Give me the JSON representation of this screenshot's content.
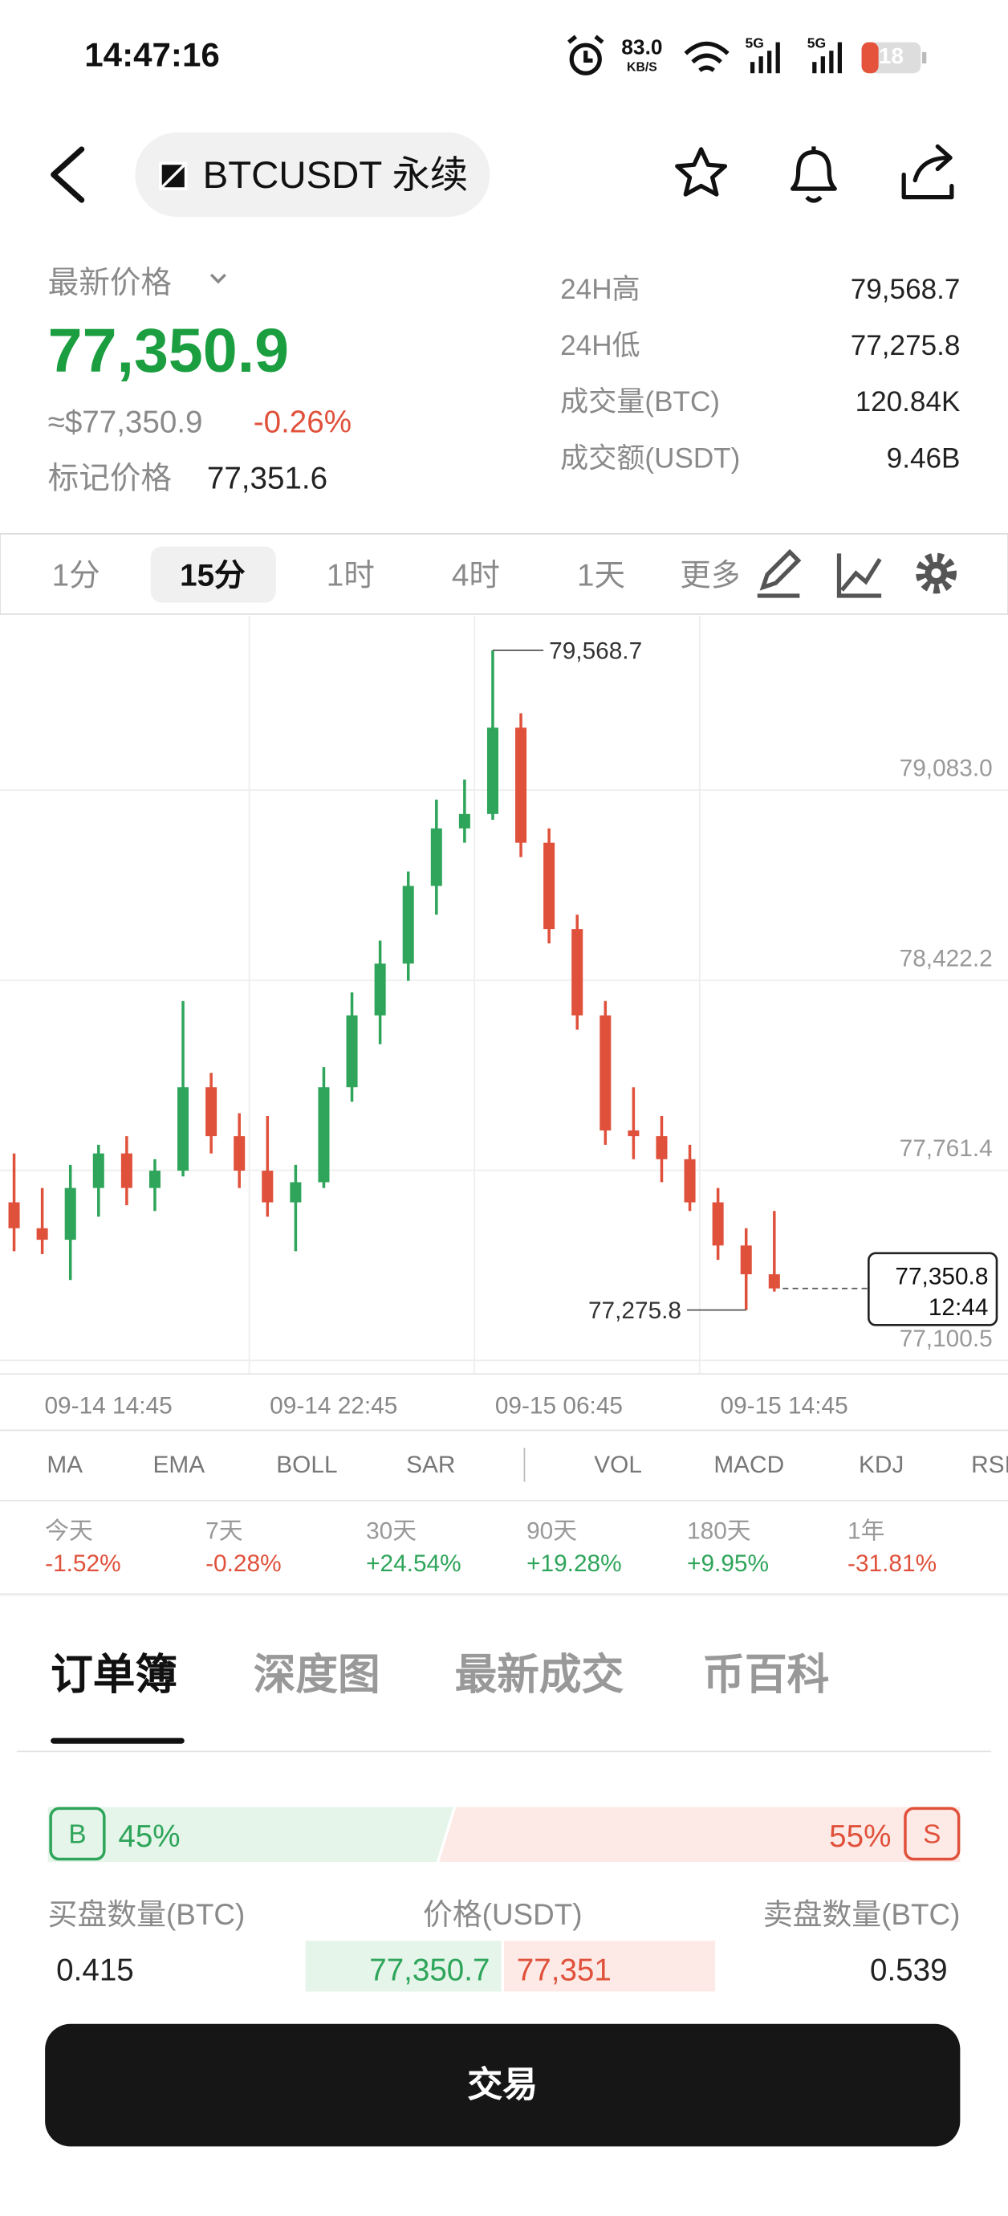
{
  "status_bar": {
    "time": "14:47:16",
    "net_speed": "83.0",
    "net_unit": "KB/S",
    "signal_1": "5G",
    "signal_2": "5G",
    "battery": "18"
  },
  "header": {
    "symbol": "BTCUSDT 永续"
  },
  "price_panel": {
    "label": "最新价格",
    "last_price": "77,350.9",
    "usd_price": "≈$77,350.9",
    "change": "-0.26%",
    "mark_label": "标记价格",
    "mark_price": "77,351.6",
    "stats": [
      {
        "label": "24H高",
        "value": "79,568.7"
      },
      {
        "label": "24H低",
        "value": "77,275.8"
      },
      {
        "label": "成交量(BTC)",
        "value": "120.84K"
      },
      {
        "label": "成交额(USDT)",
        "value": "9.46B"
      }
    ]
  },
  "timeframes": {
    "items": [
      "1分",
      "15分",
      "1时",
      "4时",
      "1天",
      "更多"
    ],
    "active": 1
  },
  "chart_data": {
    "type": "candlestick",
    "open": [
      77650,
      77560,
      77520,
      77700,
      77820,
      77700,
      77760,
      78050,
      77880,
      77760,
      77650,
      77720,
      78050,
      78300,
      78480,
      78750,
      78950,
      79000,
      79300,
      78900,
      78600,
      78300,
      77900,
      77880,
      77800,
      77650,
      77500,
      77400
    ],
    "high": [
      77820,
      77700,
      77780,
      77850,
      77880,
      77800,
      78350,
      78100,
      77960,
      77950,
      77780,
      78120,
      78380,
      78560,
      78800,
      79050,
      79120,
      79568.7,
      79350,
      78950,
      78650,
      78350,
      78050,
      77950,
      77850,
      77700,
      77560,
      77620
    ],
    "low": [
      77480,
      77470,
      77380,
      77600,
      77640,
      77620,
      77740,
      77820,
      77700,
      77600,
      77480,
      77700,
      78000,
      78200,
      78420,
      78650,
      78900,
      78980,
      78850,
      78550,
      78250,
      77850,
      77800,
      77720,
      77620,
      77450,
      77275.8,
      77340
    ],
    "close": [
      77560,
      77520,
      77700,
      77820,
      77700,
      77760,
      78050,
      77880,
      77760,
      77650,
      77720,
      78050,
      78300,
      78480,
      78750,
      78950,
      79000,
      79300,
      78900,
      78600,
      78300,
      77900,
      77880,
      77800,
      77650,
      77500,
      77400,
      77350.8
    ],
    "ylim": [
      77056,
      79690
    ],
    "yticks": [
      {
        "value": 77100.5,
        "label": "77,100.5"
      },
      {
        "value": 77761.4,
        "label": "77,761.4"
      },
      {
        "value": 78422.2,
        "label": "78,422.2"
      },
      {
        "value": 79083.0,
        "label": "79,083.0"
      }
    ],
    "xlim": [
      -0.5,
      35.3
    ],
    "xticks": [
      {
        "value": 3.35,
        "label": "09-14 14:45"
      },
      {
        "value": 11.35,
        "label": "09-14 22:45"
      },
      {
        "value": 19.35,
        "label": "09-15 06:45"
      },
      {
        "value": 27.35,
        "label": "09-15 14:45"
      }
    ],
    "annotations": {
      "high": {
        "value": 79568.7,
        "label": "79,568.7"
      },
      "low": {
        "value": 77275.8,
        "label": "77,275.8"
      },
      "last": {
        "value": 77350.8,
        "label": "77,350.8"
      },
      "countdown": "12:44"
    },
    "grid": true,
    "up_color": "#2ea55a",
    "down_color": "#e0513b"
  },
  "indicators": [
    "MA",
    "EMA",
    "BOLL",
    "SAR",
    "VOL",
    "MACD",
    "KDJ",
    "RSI"
  ],
  "performance": [
    {
      "period": "今天",
      "change": "-1.52%"
    },
    {
      "period": "7天",
      "change": "-0.28%"
    },
    {
      "period": "30天",
      "change": "+24.54%"
    },
    {
      "period": "90天",
      "change": "+19.28%"
    },
    {
      "period": "180天",
      "change": "+9.95%"
    },
    {
      "period": "1年",
      "change": "-31.81%"
    }
  ],
  "tabs": {
    "items": [
      "订单簿",
      "深度图",
      "最新成交",
      "币百科"
    ],
    "active": 0
  },
  "order_book": {
    "buy_label": "B",
    "buy_ratio": "45%",
    "sell_ratio": "55%",
    "sell_label": "S",
    "headers": [
      "买盘数量(BTC)",
      "价格(USDT)",
      "卖盘数量(BTC)"
    ],
    "bid_qty": "0.415",
    "bid_price": "77,350.7",
    "ask_price": "77,351",
    "ask_qty": "0.539"
  },
  "trade_button": "交易"
}
